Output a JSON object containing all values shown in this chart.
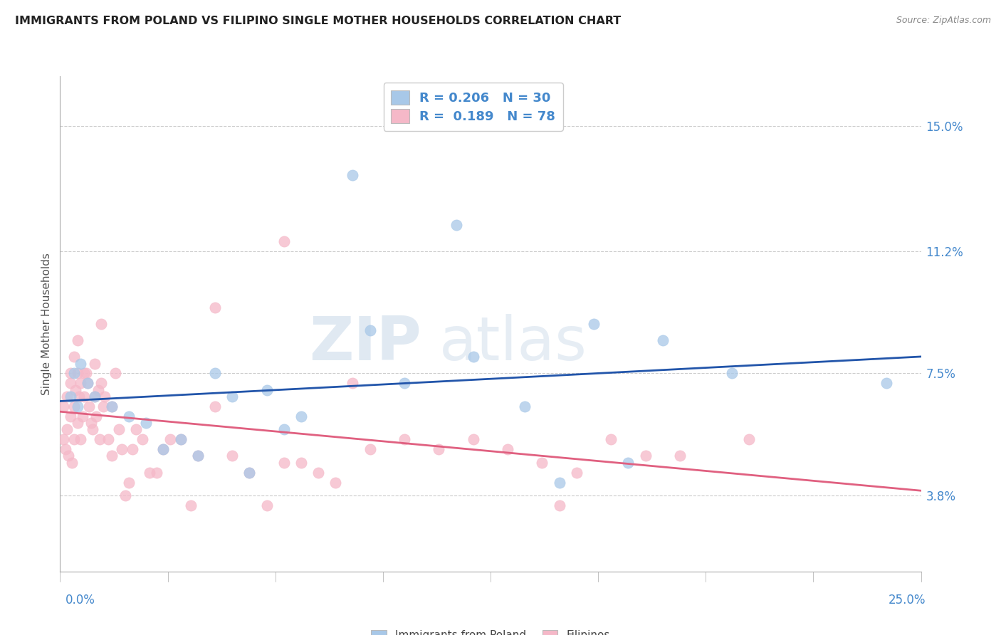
{
  "title": "IMMIGRANTS FROM POLAND VS FILIPINO SINGLE MOTHER HOUSEHOLDS CORRELATION CHART",
  "source": "Source: ZipAtlas.com",
  "ylabel": "Single Mother Households",
  "yticks": [
    3.8,
    7.5,
    11.2,
    15.0
  ],
  "ytick_labels": [
    "3.8%",
    "7.5%",
    "11.2%",
    "15.0%"
  ],
  "xmin": 0.0,
  "xmax": 25.0,
  "ymin": 1.5,
  "ymax": 16.5,
  "legend_r1": "R = 0.206",
  "legend_n1": "N = 30",
  "legend_r2": "R =  0.189",
  "legend_n2": "N = 78",
  "color_blue": "#a8c8e8",
  "color_pink": "#f5b8c8",
  "color_blue_line": "#2255aa",
  "color_pink_line": "#e06080",
  "color_axis_labels": "#4488cc",
  "color_title": "#222222",
  "watermark_zip": "ZIP",
  "watermark_atlas": "atlas",
  "blue_points_x": [
    0.3,
    0.5,
    0.8,
    1.5,
    2.5,
    3.5,
    4.0,
    5.0,
    6.0,
    7.0,
    8.5,
    10.0,
    11.5,
    13.5,
    15.5,
    17.5,
    0.4,
    1.0,
    2.0,
    4.5,
    6.5,
    9.0,
    12.0,
    14.5,
    16.5,
    19.5,
    0.6,
    3.0,
    5.5,
    24.0
  ],
  "blue_points_y": [
    6.8,
    6.5,
    7.2,
    6.5,
    6.0,
    5.5,
    5.0,
    6.8,
    7.0,
    6.2,
    13.5,
    7.2,
    12.0,
    6.5,
    9.0,
    8.5,
    7.5,
    6.8,
    6.2,
    7.5,
    5.8,
    8.8,
    8.0,
    4.2,
    4.8,
    7.5,
    7.8,
    5.2,
    4.5,
    7.2
  ],
  "pink_points_x": [
    0.1,
    0.1,
    0.15,
    0.2,
    0.2,
    0.25,
    0.3,
    0.3,
    0.35,
    0.4,
    0.4,
    0.45,
    0.5,
    0.5,
    0.55,
    0.6,
    0.6,
    0.65,
    0.7,
    0.7,
    0.75,
    0.8,
    0.85,
    0.9,
    0.95,
    1.0,
    1.0,
    1.05,
    1.1,
    1.15,
    1.2,
    1.25,
    1.3,
    1.4,
    1.5,
    1.5,
    1.6,
    1.7,
    1.8,
    1.9,
    2.0,
    2.1,
    2.2,
    2.4,
    2.6,
    2.8,
    3.0,
    3.2,
    3.5,
    3.8,
    4.0,
    4.5,
    5.0,
    5.5,
    6.0,
    6.5,
    7.0,
    7.5,
    8.0,
    9.0,
    10.0,
    11.0,
    12.0,
    13.0,
    14.0,
    15.0,
    16.0,
    17.0,
    18.0,
    20.0,
    4.5,
    6.5,
    8.5,
    14.5,
    0.3,
    0.4,
    0.5,
    1.2
  ],
  "pink_points_y": [
    6.5,
    5.5,
    5.2,
    6.8,
    5.8,
    5.0,
    7.2,
    6.2,
    4.8,
    6.5,
    5.5,
    7.0,
    7.5,
    6.0,
    6.8,
    7.2,
    5.5,
    6.2,
    7.5,
    6.8,
    7.5,
    7.2,
    6.5,
    6.0,
    5.8,
    7.8,
    6.8,
    6.2,
    7.0,
    5.5,
    7.2,
    6.5,
    6.8,
    5.5,
    6.5,
    5.0,
    7.5,
    5.8,
    5.2,
    3.8,
    4.2,
    5.2,
    5.8,
    5.5,
    4.5,
    4.5,
    5.2,
    5.5,
    5.5,
    3.5,
    5.0,
    6.5,
    5.0,
    4.5,
    3.5,
    4.8,
    4.8,
    4.5,
    4.2,
    5.2,
    5.5,
    5.2,
    5.5,
    5.2,
    4.8,
    4.5,
    5.5,
    5.0,
    5.0,
    5.5,
    9.5,
    11.5,
    7.2,
    3.5,
    7.5,
    8.0,
    8.5,
    9.0
  ]
}
